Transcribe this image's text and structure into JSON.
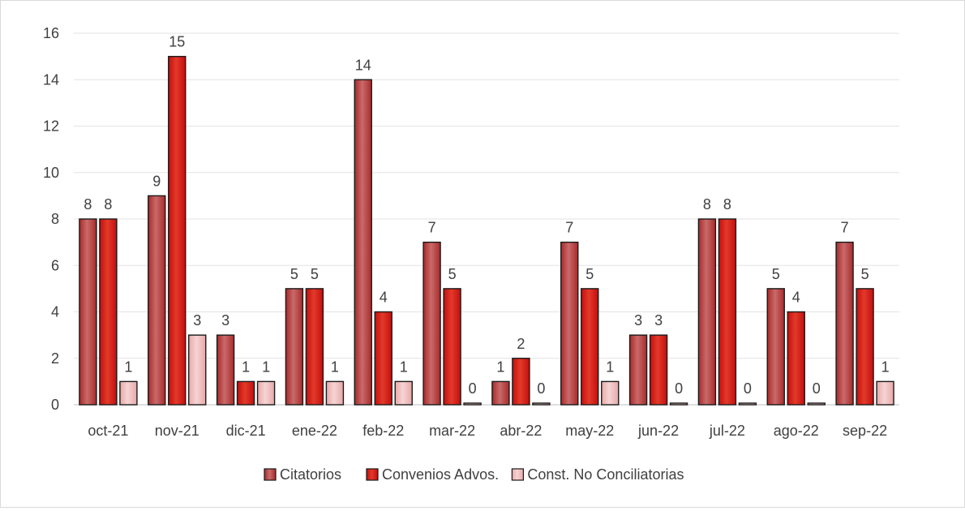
{
  "chart_data": {
    "type": "bar",
    "categories": [
      "oct-21",
      "nov-21",
      "dic-21",
      "ene-22",
      "feb-22",
      "mar-22",
      "abr-22",
      "may-22",
      "jun-22",
      "jul-22",
      "ago-22",
      "sep-22"
    ],
    "series": [
      {
        "name": "Citatorios",
        "values": [
          8,
          9,
          3,
          5,
          14,
          7,
          1,
          7,
          3,
          8,
          5,
          7
        ],
        "color": "#a82a2a",
        "highlight": "#c96a6a"
      },
      {
        "name": "Convenios Advos.",
        "values": [
          8,
          15,
          1,
          5,
          4,
          5,
          2,
          5,
          3,
          8,
          4,
          5
        ],
        "color": "#c40e0e",
        "highlight": "#e23a2a"
      },
      {
        "name": "Const. No Conciliatorias",
        "values": [
          1,
          3,
          1,
          1,
          1,
          0,
          0,
          1,
          0,
          0,
          0,
          1
        ],
        "color": "#e8a8a8",
        "highlight": "#f6d4d4"
      }
    ],
    "ylim": [
      0,
      16
    ],
    "yticks": [
      0,
      2,
      4,
      6,
      8,
      10,
      12,
      14,
      16
    ],
    "grid": true,
    "legend_position": "bottom",
    "data_labels": true
  }
}
